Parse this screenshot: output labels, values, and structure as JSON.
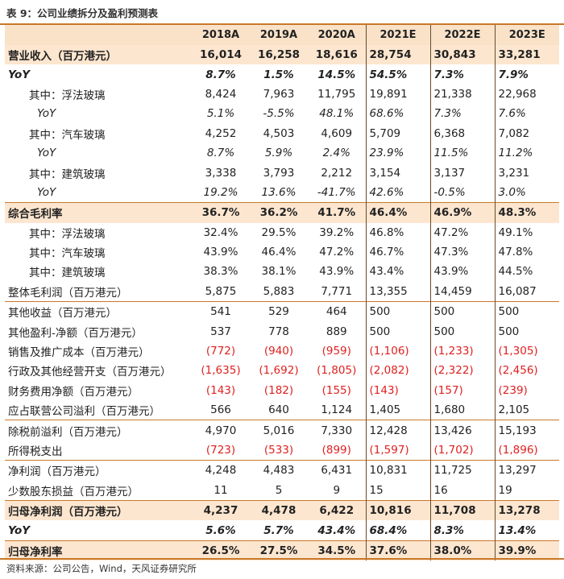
{
  "title": "表 9：公司业绩拆分及盈利预测表",
  "headers": [
    "",
    "2018A",
    "2019A",
    "2020A",
    "2021E",
    "2022E",
    "2023E"
  ],
  "rows": [
    {
      "label": "营业收入（百万港元）",
      "style": "bold shade",
      "values": [
        "16,014",
        "16,258",
        "18,616",
        "28,754",
        "30,843",
        "33,281"
      ]
    },
    {
      "label": "YoY",
      "style": "bold ital",
      "values": [
        "8.7%",
        "1.5%",
        "14.5%",
        "54.5%",
        "7.3%",
        "7.9%"
      ]
    },
    {
      "label": "其中：浮法玻璃",
      "style": "sub",
      "values": [
        "8,424",
        "7,963",
        "11,795",
        "19,891",
        "21,338",
        "22,968"
      ]
    },
    {
      "label": "YoY",
      "style": "subit ital",
      "values": [
        "5.1%",
        "-5.5%",
        "48.1%",
        "68.6%",
        "7.3%",
        "7.6%"
      ]
    },
    {
      "label": "其中：汽车玻璃",
      "style": "sub",
      "values": [
        "4,252",
        "4,503",
        "4,609",
        "5,709",
        "6,368",
        "7,082"
      ]
    },
    {
      "label": "YoY",
      "style": "subit ital",
      "values": [
        "8.7%",
        "5.9%",
        "2.4%",
        "23.9%",
        "11.5%",
        "11.2%"
      ]
    },
    {
      "label": "其中：建筑玻璃",
      "style": "sub",
      "values": [
        "3,338",
        "3,793",
        "2,212",
        "3,154",
        "3,137",
        "3,231"
      ]
    },
    {
      "label": "YoY",
      "style": "subit ital",
      "values": [
        "19.2%",
        "13.6%",
        "-41.7%",
        "42.6%",
        "-0.5%",
        "3.0%"
      ]
    },
    {
      "label": "综合毛利率",
      "style": "bold shade sep",
      "values": [
        "36.7%",
        "36.2%",
        "41.7%",
        "46.4%",
        "46.9%",
        "48.3%"
      ]
    },
    {
      "label": "其中：浮法玻璃",
      "style": "sub",
      "values": [
        "32.4%",
        "29.5%",
        "39.2%",
        "46.8%",
        "47.2%",
        "49.1%"
      ]
    },
    {
      "label": "其中：汽车玻璃",
      "style": "sub",
      "values": [
        "43.9%",
        "46.4%",
        "47.2%",
        "46.7%",
        "47.3%",
        "47.8%"
      ]
    },
    {
      "label": "其中：建筑玻璃",
      "style": "sub",
      "values": [
        "38.3%",
        "38.1%",
        "43.9%",
        "43.4%",
        "43.9%",
        "44.5%"
      ]
    },
    {
      "label": "整体毛利润（百万港元）",
      "style": "",
      "values": [
        "5,875",
        "5,883",
        "7,771",
        "13,355",
        "14,459",
        "16,087"
      ]
    },
    {
      "label": "其他收益（百万港元）",
      "style": "sep",
      "values": [
        "541",
        "529",
        "464",
        "500",
        "500",
        "500"
      ]
    },
    {
      "label": "其他盈利-净额（百万港元）",
      "style": "",
      "values": [
        "537",
        "778",
        "889",
        "500",
        "500",
        "500"
      ]
    },
    {
      "label": "销售及推广成本（百万港元）",
      "style": "",
      "values": [
        "(772)",
        "(940)",
        "(959)",
        "(1,106)",
        "(1,233)",
        "(1,305)"
      ]
    },
    {
      "label": "行政及其他经营开支（百万港元）",
      "style": "",
      "values": [
        "(1,635)",
        "(1,692)",
        "(1,805)",
        "(2,082)",
        "(2,322)",
        "(2,456)"
      ]
    },
    {
      "label": "财务费用净额（百万港元）",
      "style": "",
      "values": [
        "(143)",
        "(182)",
        "(155)",
        "(143)",
        "(157)",
        "(239)"
      ]
    },
    {
      "label": "应占联营公司溢利（百万港元）",
      "style": "",
      "values": [
        "566",
        "640",
        "1,124",
        "1,405",
        "1,680",
        "2,105"
      ]
    },
    {
      "label": "除税前溢利（百万港元）",
      "style": "sep",
      "values": [
        "4,970",
        "5,016",
        "7,330",
        "12,428",
        "13,426",
        "15,193"
      ]
    },
    {
      "label": "所得税支出",
      "style": "",
      "values": [
        "(723)",
        "(533)",
        "(899)",
        "(1,597)",
        "(1,702)",
        "(1,896)"
      ]
    },
    {
      "label": "净利润（百万港元）",
      "style": "sep",
      "values": [
        "4,248",
        "4,483",
        "6,431",
        "10,831",
        "11,725",
        "13,297"
      ]
    },
    {
      "label": "少数股东损益（百万港元）",
      "style": "",
      "values": [
        "11",
        "5",
        "9",
        "15",
        "16",
        "19"
      ]
    },
    {
      "label": "归母净利润（百万港元）",
      "style": "bold shade sep",
      "values": [
        "4,237",
        "4,478",
        "6,422",
        "10,816",
        "11,708",
        "13,278"
      ]
    },
    {
      "label": "YoY",
      "style": "bold ital",
      "values": [
        "5.6%",
        "5.7%",
        "43.4%",
        "68.4%",
        "8.3%",
        "13.4%"
      ]
    },
    {
      "label": "归母净利率",
      "style": "bold shade sep",
      "values": [
        "26.5%",
        "27.5%",
        "34.5%",
        "37.6%",
        "38.0%",
        "39.9%"
      ]
    }
  ],
  "source": "资料来源：公司公告，Wind，天风证券研究所"
}
